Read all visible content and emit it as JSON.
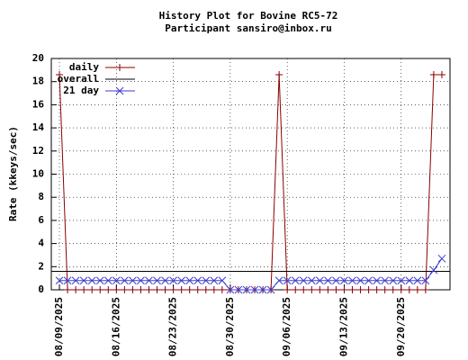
{
  "chart_data": {
    "type": "line",
    "title": "History Plot for Bovine RC5-72",
    "subtitle": "Participant sansiro@inbox.ru",
    "y_label": "Rate (kkeys/sec)",
    "x": [
      "08/09/2025",
      "08/10/2025",
      "08/11/2025",
      "08/12/2025",
      "08/13/2025",
      "08/14/2025",
      "08/15/2025",
      "08/16/2025",
      "08/17/2025",
      "08/18/2025",
      "08/19/2025",
      "08/20/2025",
      "08/21/2025",
      "08/22/2025",
      "08/23/2025",
      "08/24/2025",
      "08/25/2025",
      "08/26/2025",
      "08/27/2025",
      "08/28/2025",
      "08/29/2025",
      "08/30/2025",
      "08/31/2025",
      "09/01/2025",
      "09/02/2025",
      "09/03/2025",
      "09/04/2025",
      "09/05/2025",
      "09/06/2025",
      "09/07/2025",
      "09/08/2025",
      "09/09/2025",
      "09/10/2025",
      "09/11/2025",
      "09/12/2025",
      "09/13/2025",
      "09/14/2025",
      "09/15/2025",
      "09/16/2025",
      "09/17/2025",
      "09/18/2025",
      "09/19/2025",
      "09/20/2025",
      "09/21/2025",
      "09/22/2025",
      "09/23/2025",
      "09/24/2025",
      "09/25/2025"
    ],
    "series": [
      {
        "name": "daily",
        "color": "#8b0000",
        "marker": "plus",
        "values": [
          18.6,
          0,
          0,
          0,
          0,
          0,
          0,
          0,
          0,
          0,
          0,
          0,
          0,
          0,
          0,
          0,
          0,
          0,
          0,
          0,
          0,
          0,
          0,
          0,
          0,
          0,
          0,
          18.6,
          0,
          0,
          0,
          0,
          0,
          0,
          0,
          0,
          0,
          0,
          0,
          0,
          0,
          0,
          0,
          0,
          0,
          0,
          18.6,
          18.6
        ]
      },
      {
        "name": "overall",
        "color": "#000000",
        "value": 1.6
      },
      {
        "name": "21 day",
        "color": "#3c3cd0",
        "marker": "cross",
        "values": [
          0.8,
          0.8,
          0.8,
          0.8,
          0.8,
          0.8,
          0.8,
          0.8,
          0.8,
          0.8,
          0.8,
          0.8,
          0.8,
          0.8,
          0.8,
          0.8,
          0.8,
          0.8,
          0.8,
          0.8,
          0.8,
          0,
          0,
          0,
          0,
          0,
          0,
          0.8,
          0.8,
          0.8,
          0.8,
          0.8,
          0.8,
          0.8,
          0.8,
          0.8,
          0.8,
          0.8,
          0.8,
          0.8,
          0.8,
          0.8,
          0.8,
          0.8,
          0.8,
          0.8,
          1.7,
          2.7
        ]
      }
    ],
    "xlim": [
      "08/08/2025",
      "09/26/2025"
    ],
    "xticks": [
      "08/09/2025",
      "08/16/2025",
      "08/23/2025",
      "08/30/2025",
      "09/06/2025",
      "09/13/2025",
      "09/20/2025"
    ],
    "ylim": [
      0,
      20
    ],
    "yticks": [
      0,
      2,
      4,
      6,
      8,
      10,
      12,
      14,
      16,
      18,
      20
    ],
    "grid": true,
    "legend": "top-left"
  }
}
